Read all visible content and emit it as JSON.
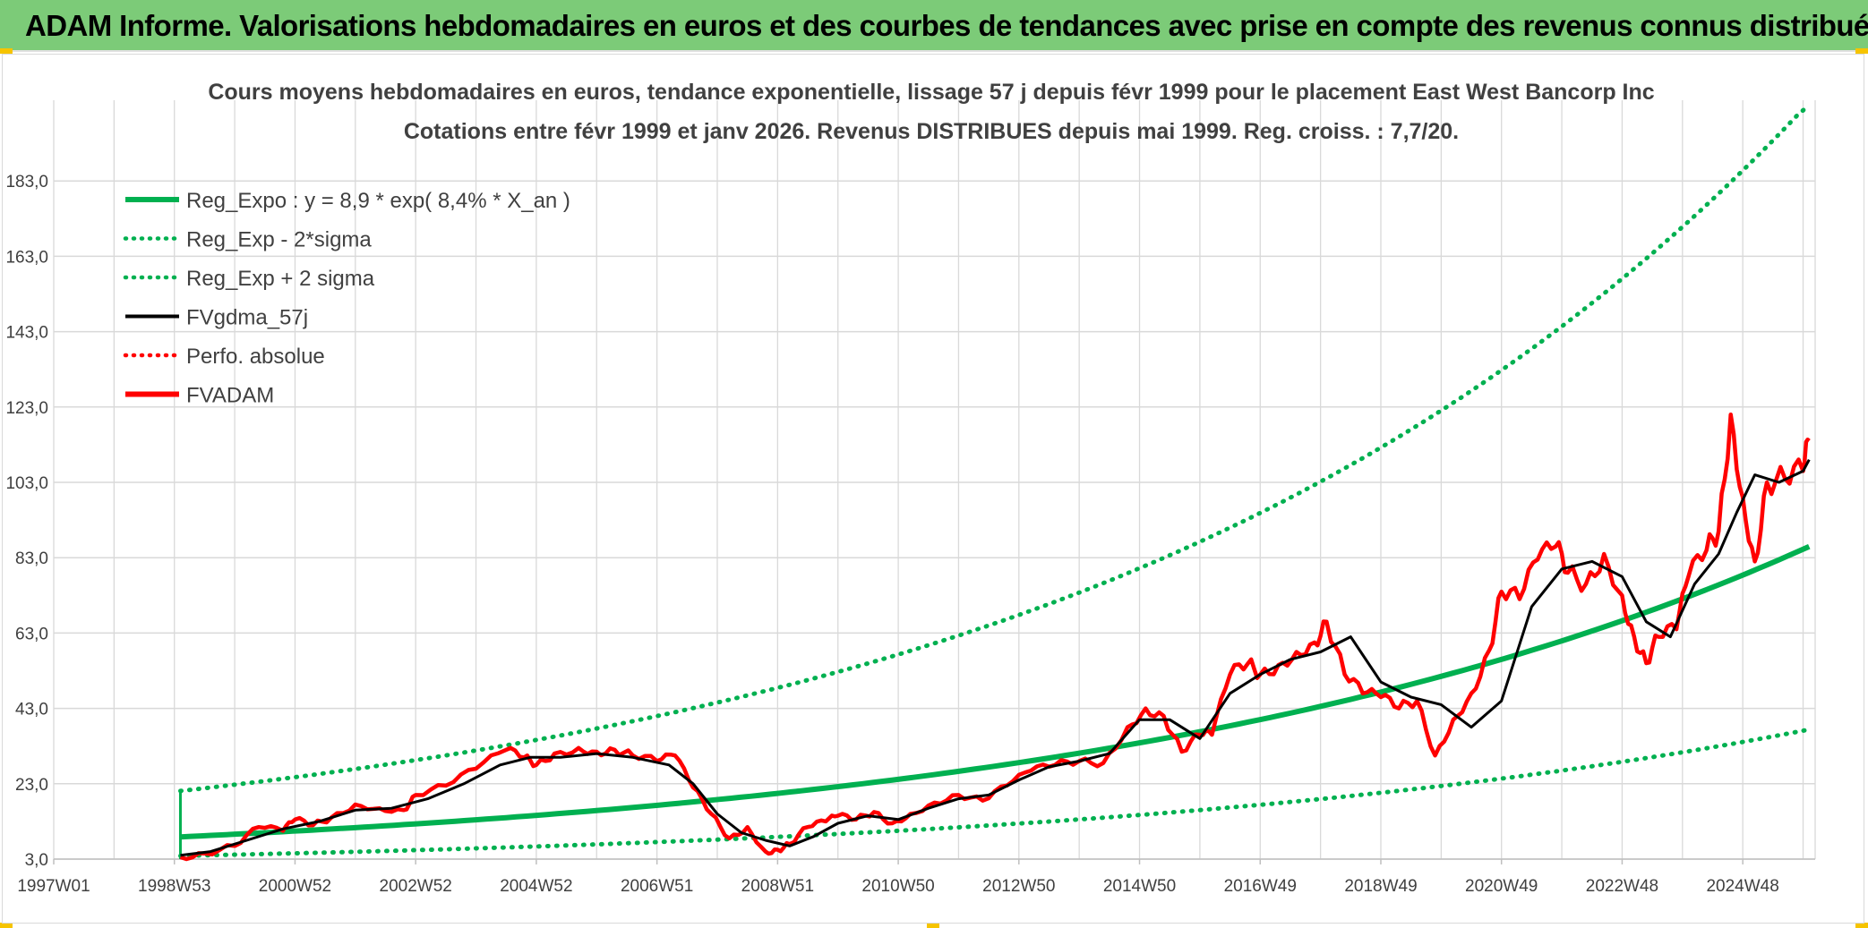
{
  "header": {
    "title": "ADAM Informe. Valorisations hebdomadaires en euros et des courbes de tendances avec prise en compte des revenus connus distribués"
  },
  "colors": {
    "banner": "#7ccb78",
    "reg_green": "#00b050",
    "price_red": "#ff0000",
    "gdma_black": "#000000",
    "grid": "#d9d9d9",
    "text": "#404040"
  },
  "chart_data": {
    "type": "line",
    "title": "Cours moyens hebdomadaires en euros, tendance exponentielle, lissage 57 j depuis févr 1999 pour le placement East West Bancorp Inc",
    "subtitle": "Cotations entre févr 1999 et janv 2026. Revenus DISTRIBUES depuis mai 1999. Reg. croiss. : 7,7/20.",
    "xlabel": "",
    "ylabel": "",
    "x_ticks": [
      "1997W01",
      "1998W53",
      "2000W52",
      "2002W52",
      "2004W52",
      "2006W51",
      "2008W51",
      "2010W50",
      "2012W50",
      "2014W50",
      "2016W49",
      "2018W49",
      "2020W49",
      "2022W48",
      "2024W48"
    ],
    "y_ticks": [
      "3,0",
      "23,0",
      "43,0",
      "63,0",
      "83,0",
      "103,0",
      "123,0",
      "143,0",
      "163,0",
      "183,0"
    ],
    "xlim": [
      1997.0,
      2026.2
    ],
    "ylim": [
      3.0,
      203.0
    ],
    "grid": true,
    "legend_position": "top-left",
    "legend": [
      {
        "name": "Reg_Expo : y = 8,9 * exp( 8,4% *  X_an )",
        "style": "solid-thick",
        "color": "#00b050"
      },
      {
        "name": "Reg_Exp - 2*sigma",
        "style": "dotted",
        "color": "#00b050"
      },
      {
        "name": "Reg_Exp + 2 sigma",
        "style": "dotted",
        "color": "#00b050"
      },
      {
        "name": "FVgdma_57j",
        "style": "solid",
        "color": "#000000"
      },
      {
        "name": "Perfo. absolue",
        "style": "dotted",
        "color": "#ff0000"
      },
      {
        "name": "FVADAM",
        "style": "solid-thick",
        "color": "#ff0000"
      }
    ],
    "regression": {
      "a": 8.9,
      "growth_rate": 0.084,
      "start_year": 1999.1,
      "end_year": 2026.1,
      "lower_factor": 0.435,
      "upper_factor": 2.37
    },
    "series": [
      {
        "name": "FVADAM",
        "x": [
          1999.1,
          1999.5,
          2000.0,
          2000.4,
          2000.8,
          2001.0,
          2001.3,
          2001.6,
          2002.0,
          2002.4,
          2002.8,
          2003.0,
          2003.5,
          2004.0,
          2004.5,
          2004.8,
          2005.0,
          2005.3,
          2005.7,
          2006.0,
          2006.3,
          2006.6,
          2007.0,
          2007.3,
          2007.6,
          2007.9,
          2008.2,
          2008.5,
          2008.8,
          2009.0,
          2009.2,
          2009.5,
          2009.8,
          2010.0,
          2010.3,
          2010.6,
          2010.9,
          2011.2,
          2011.6,
          2012.0,
          2012.4,
          2012.8,
          2013.2,
          2013.6,
          2014.0,
          2014.4,
          2014.8,
          2015.1,
          2015.4,
          2015.7,
          2016.0,
          2016.2,
          2016.5,
          2016.8,
          2017.0,
          2017.3,
          2017.6,
          2017.9,
          2018.1,
          2018.4,
          2018.7,
          2019.0,
          2019.3,
          2019.6,
          2019.9,
          2020.2,
          2020.5,
          2020.8,
          2021.0,
          2021.3,
          2021.6,
          2021.9,
          2022.1,
          2022.4,
          2022.7,
          2023.0,
          2023.2,
          2023.4,
          2023.6,
          2023.9,
          2024.1,
          2024.4,
          2024.6,
          2024.8,
          2025.0,
          2025.2,
          2025.4,
          2025.7,
          2026.0,
          2026.1
        ],
        "y": [
          3.5,
          4.5,
          6.5,
          11.5,
          10.5,
          13.5,
          12.0,
          14.0,
          17.5,
          16.5,
          16.0,
          20.0,
          22.5,
          27.0,
          32.0,
          30.0,
          28.0,
          31.0,
          32.5,
          31.5,
          32.0,
          30.5,
          29.0,
          30.5,
          22.0,
          15.0,
          8.5,
          11.5,
          5.0,
          5.5,
          7.0,
          11.5,
          13.0,
          14.5,
          13.5,
          15.5,
          12.5,
          15.0,
          18.0,
          20.0,
          18.5,
          22.5,
          26.5,
          28.0,
          29.0,
          28.5,
          38.0,
          43.0,
          41.0,
          31.5,
          36.0,
          36.0,
          52.0,
          55.0,
          52.0,
          54.5,
          58.0,
          60.5,
          66.0,
          52.0,
          47.0,
          46.0,
          43.0,
          45.0,
          30.5,
          40.0,
          47.0,
          58.5,
          74.0,
          72.0,
          82.5,
          86.0,
          79.0,
          76.0,
          84.0,
          73.0,
          62.0,
          55.0,
          62.0,
          64.0,
          78.0,
          85.0,
          90.0,
          121.0,
          99.0,
          82.0,
          103.0,
          104.0,
          106.0,
          114.0
        ]
      },
      {
        "name": "FVgdma_57j",
        "x": [
          1999.1,
          1999.6,
          2000.2,
          2000.8,
          2001.4,
          2002.0,
          2002.6,
          2003.2,
          2003.8,
          2004.4,
          2004.9,
          2005.4,
          2006.0,
          2006.6,
          2007.2,
          2007.6,
          2008.0,
          2008.4,
          2008.8,
          2009.2,
          2009.6,
          2010.0,
          2010.5,
          2011.0,
          2011.5,
          2012.0,
          2012.5,
          2013.0,
          2013.5,
          2014.0,
          2014.5,
          2015.0,
          2015.5,
          2016.0,
          2016.5,
          2017.0,
          2017.5,
          2018.0,
          2018.5,
          2019.0,
          2019.5,
          2020.0,
          2020.5,
          2021.0,
          2021.5,
          2022.0,
          2022.5,
          2023.0,
          2023.4,
          2023.8,
          2024.2,
          2024.6,
          2024.9,
          2025.2,
          2025.6,
          2026.0,
          2026.1
        ],
        "y": [
          4.0,
          5.0,
          8.0,
          11.0,
          13.0,
          16.0,
          16.5,
          19.0,
          23.0,
          28.0,
          30.0,
          30.0,
          31.0,
          30.0,
          28.0,
          23.0,
          15.0,
          10.0,
          8.0,
          6.5,
          9.0,
          12.5,
          14.5,
          13.5,
          16.5,
          19.0,
          20.0,
          24.0,
          27.5,
          29.0,
          31.0,
          40.0,
          40.0,
          35.0,
          47.0,
          52.0,
          56.0,
          58.0,
          62.0,
          50.0,
          46.0,
          44.0,
          38.0,
          45.0,
          70.0,
          80.0,
          82.0,
          78.0,
          66.0,
          62.0,
          76.0,
          84.0,
          95.0,
          105.0,
          103.0,
          106.0,
          109.0
        ]
      }
    ]
  }
}
